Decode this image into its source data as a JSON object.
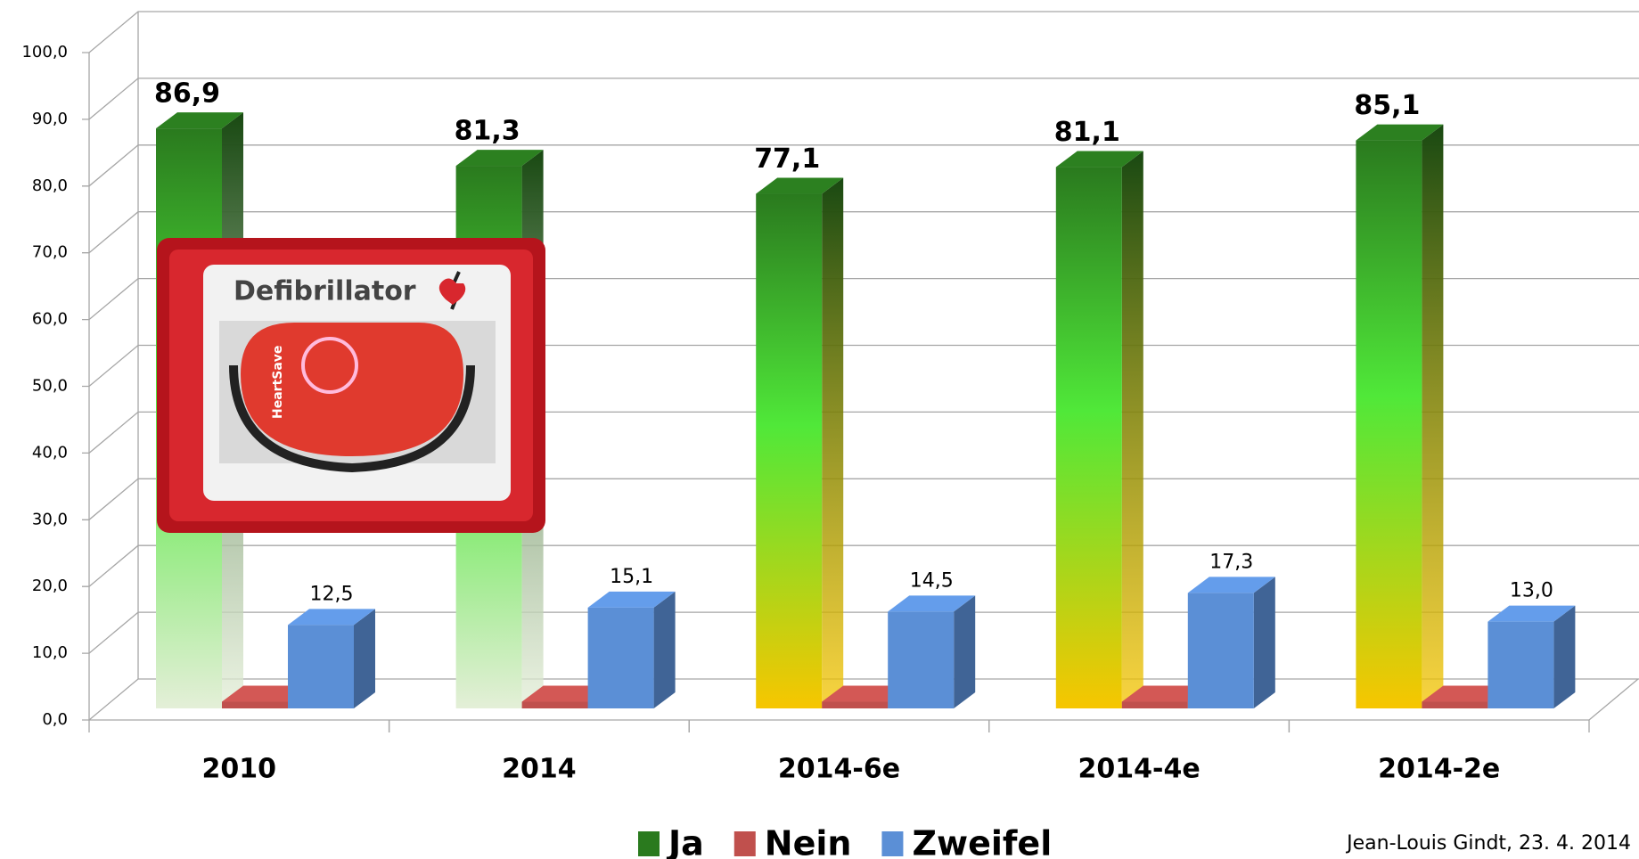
{
  "chart_data": {
    "type": "bar3d",
    "categories": [
      "2010",
      "2014",
      "2014-6e",
      "2014-4e",
      "2014-2e"
    ],
    "series": [
      {
        "name": "Ja",
        "color": "#2a7a1e",
        "gradient_bottoms": [
          "#e4efd8",
          "#e4efd8",
          "#f7c600",
          "#f7c600",
          "#f7c600"
        ],
        "values": [
          86.9,
          81.3,
          77.1,
          81.1,
          85.1
        ],
        "value_labels": [
          "86,9",
          "81,3",
          "77,1",
          "81,1",
          "85,1"
        ]
      },
      {
        "name": "Nein",
        "color": "#c0504d",
        "values": [
          1.0,
          1.0,
          1.0,
          1.0,
          1.0
        ]
      },
      {
        "name": "Zweifel",
        "color": "#5b8fd6",
        "values": [
          12.5,
          15.1,
          14.5,
          17.3,
          13.0
        ],
        "value_labels": [
          "12,5",
          "15,1",
          "14,5",
          "17,3",
          "13,0"
        ]
      }
    ],
    "ylim": [
      0,
      100
    ],
    "yticks": [
      {
        "value": 0,
        "label": "0,0"
      },
      {
        "value": 10,
        "label": "10,0"
      },
      {
        "value": 20,
        "label": "20,0"
      },
      {
        "value": 30,
        "label": "30,0"
      },
      {
        "value": 40,
        "label": "40,0"
      },
      {
        "value": 50,
        "label": "50,0"
      },
      {
        "value": 60,
        "label": "60,0"
      },
      {
        "value": 70,
        "label": "70,0"
      },
      {
        "value": 80,
        "label": "80,0"
      },
      {
        "value": 90,
        "label": "90,0"
      },
      {
        "value": 100,
        "label": "100,0"
      }
    ],
    "grid": true,
    "legend": "bottom",
    "annotations": [
      "Jean-Louis Gindt, 23. 4. 2014"
    ],
    "photo_texts": [
      "Defibrillator",
      "HeartSave"
    ]
  }
}
